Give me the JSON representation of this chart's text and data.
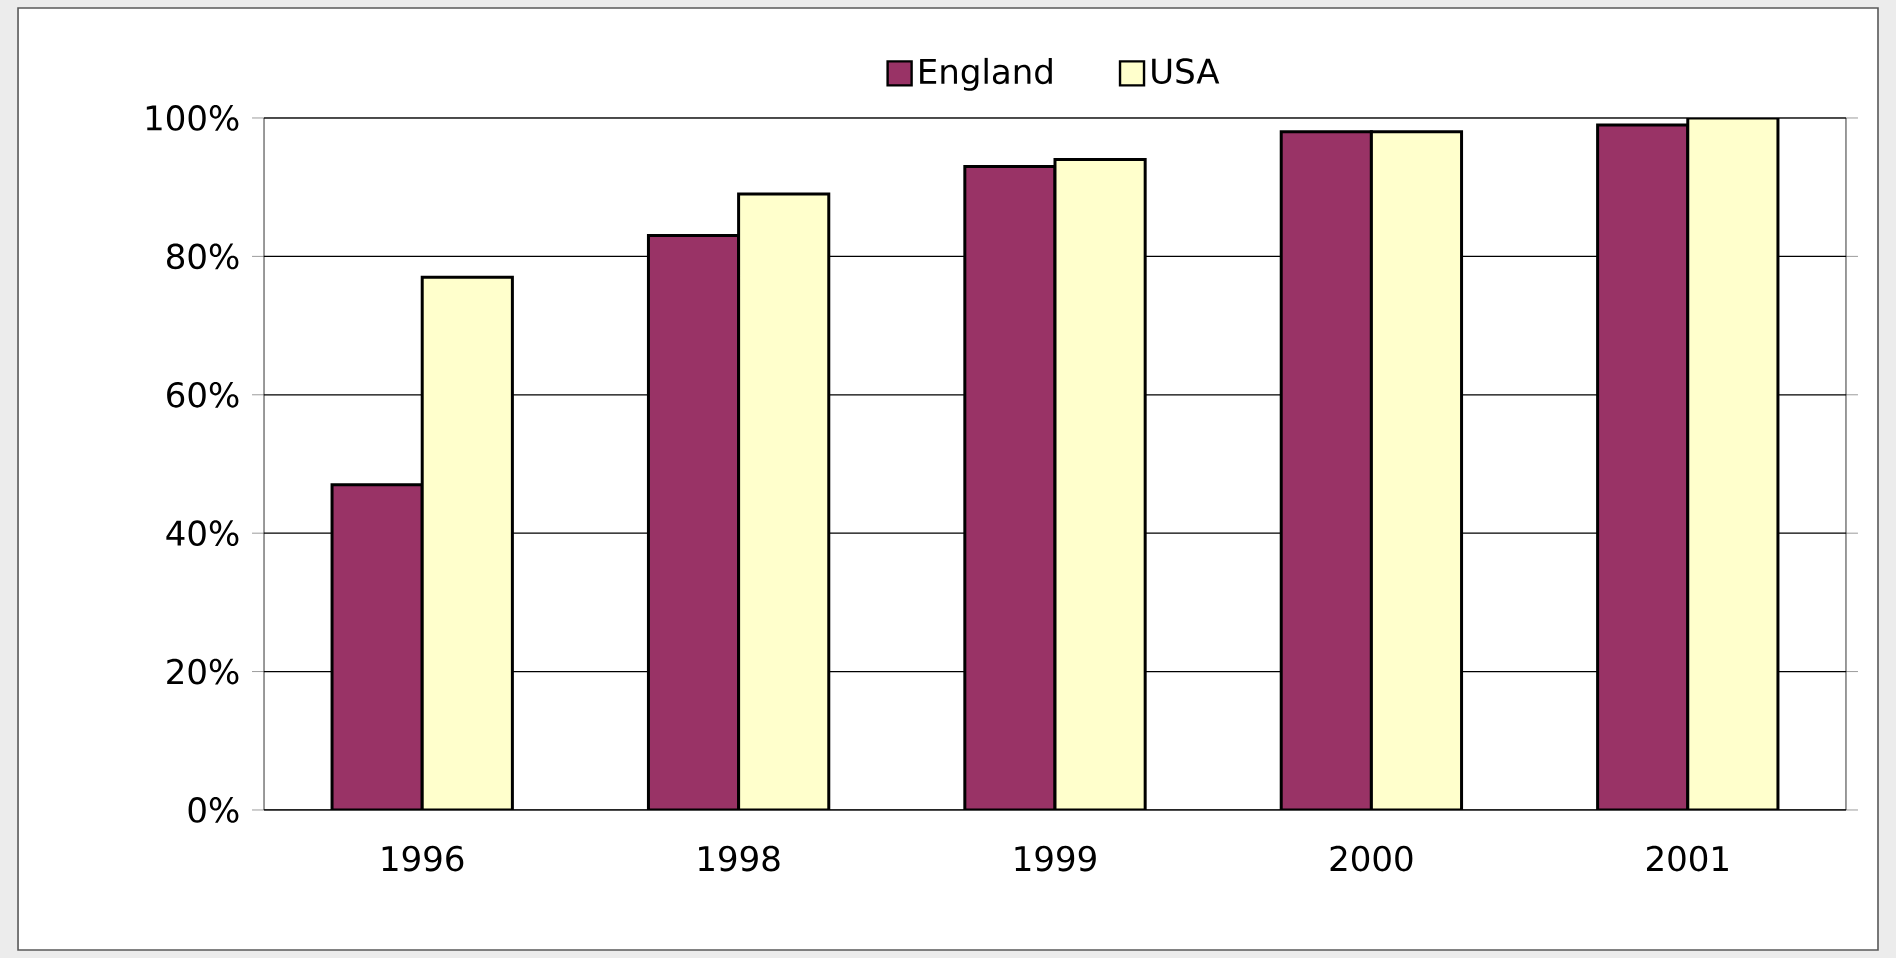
{
  "chart_data": {
    "type": "bar",
    "categories": [
      "1996",
      "1998",
      "1999",
      "2000",
      "2001"
    ],
    "series": [
      {
        "name": "England",
        "color": "#993366",
        "values": [
          47,
          83,
          93,
          98,
          99
        ]
      },
      {
        "name": "USA",
        "color": "#ffffcc",
        "values": [
          77,
          89,
          94,
          98,
          100
        ]
      }
    ],
    "ylim": [
      0,
      100
    ],
    "yticks": [
      {
        "value": 0,
        "label": "0%"
      },
      {
        "value": 20,
        "label": "20%"
      },
      {
        "value": 40,
        "label": "40%"
      },
      {
        "value": 60,
        "label": "60%"
      },
      {
        "value": 80,
        "label": "80%"
      },
      {
        "value": 100,
        "label": "100%"
      }
    ],
    "grid": "y",
    "legend": "top"
  }
}
